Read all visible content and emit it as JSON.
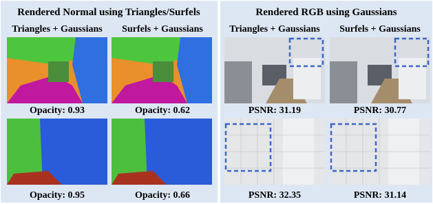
{
  "panels": [
    {
      "title": "Rendered Normal using Triangles/Surfels",
      "columns": [
        "Triangles + Gaussians",
        "Surfels + Gaussians"
      ],
      "captions": [
        [
          "Opacity: 0.93",
          "Opacity: 0.62"
        ],
        [
          "Opacity: 0.95",
          "Opacity: 0.66"
        ]
      ]
    },
    {
      "title": "Rendered RGB using Gaussians",
      "columns": [
        "Triangles + Gaussians",
        "Surfels + Gaussians"
      ],
      "captions": [
        [
          "PSNR: 31.19",
          "PSNR: 30.77"
        ],
        [
          "PSNR: 32.35",
          "PSNR: 31.14"
        ]
      ]
    }
  ]
}
